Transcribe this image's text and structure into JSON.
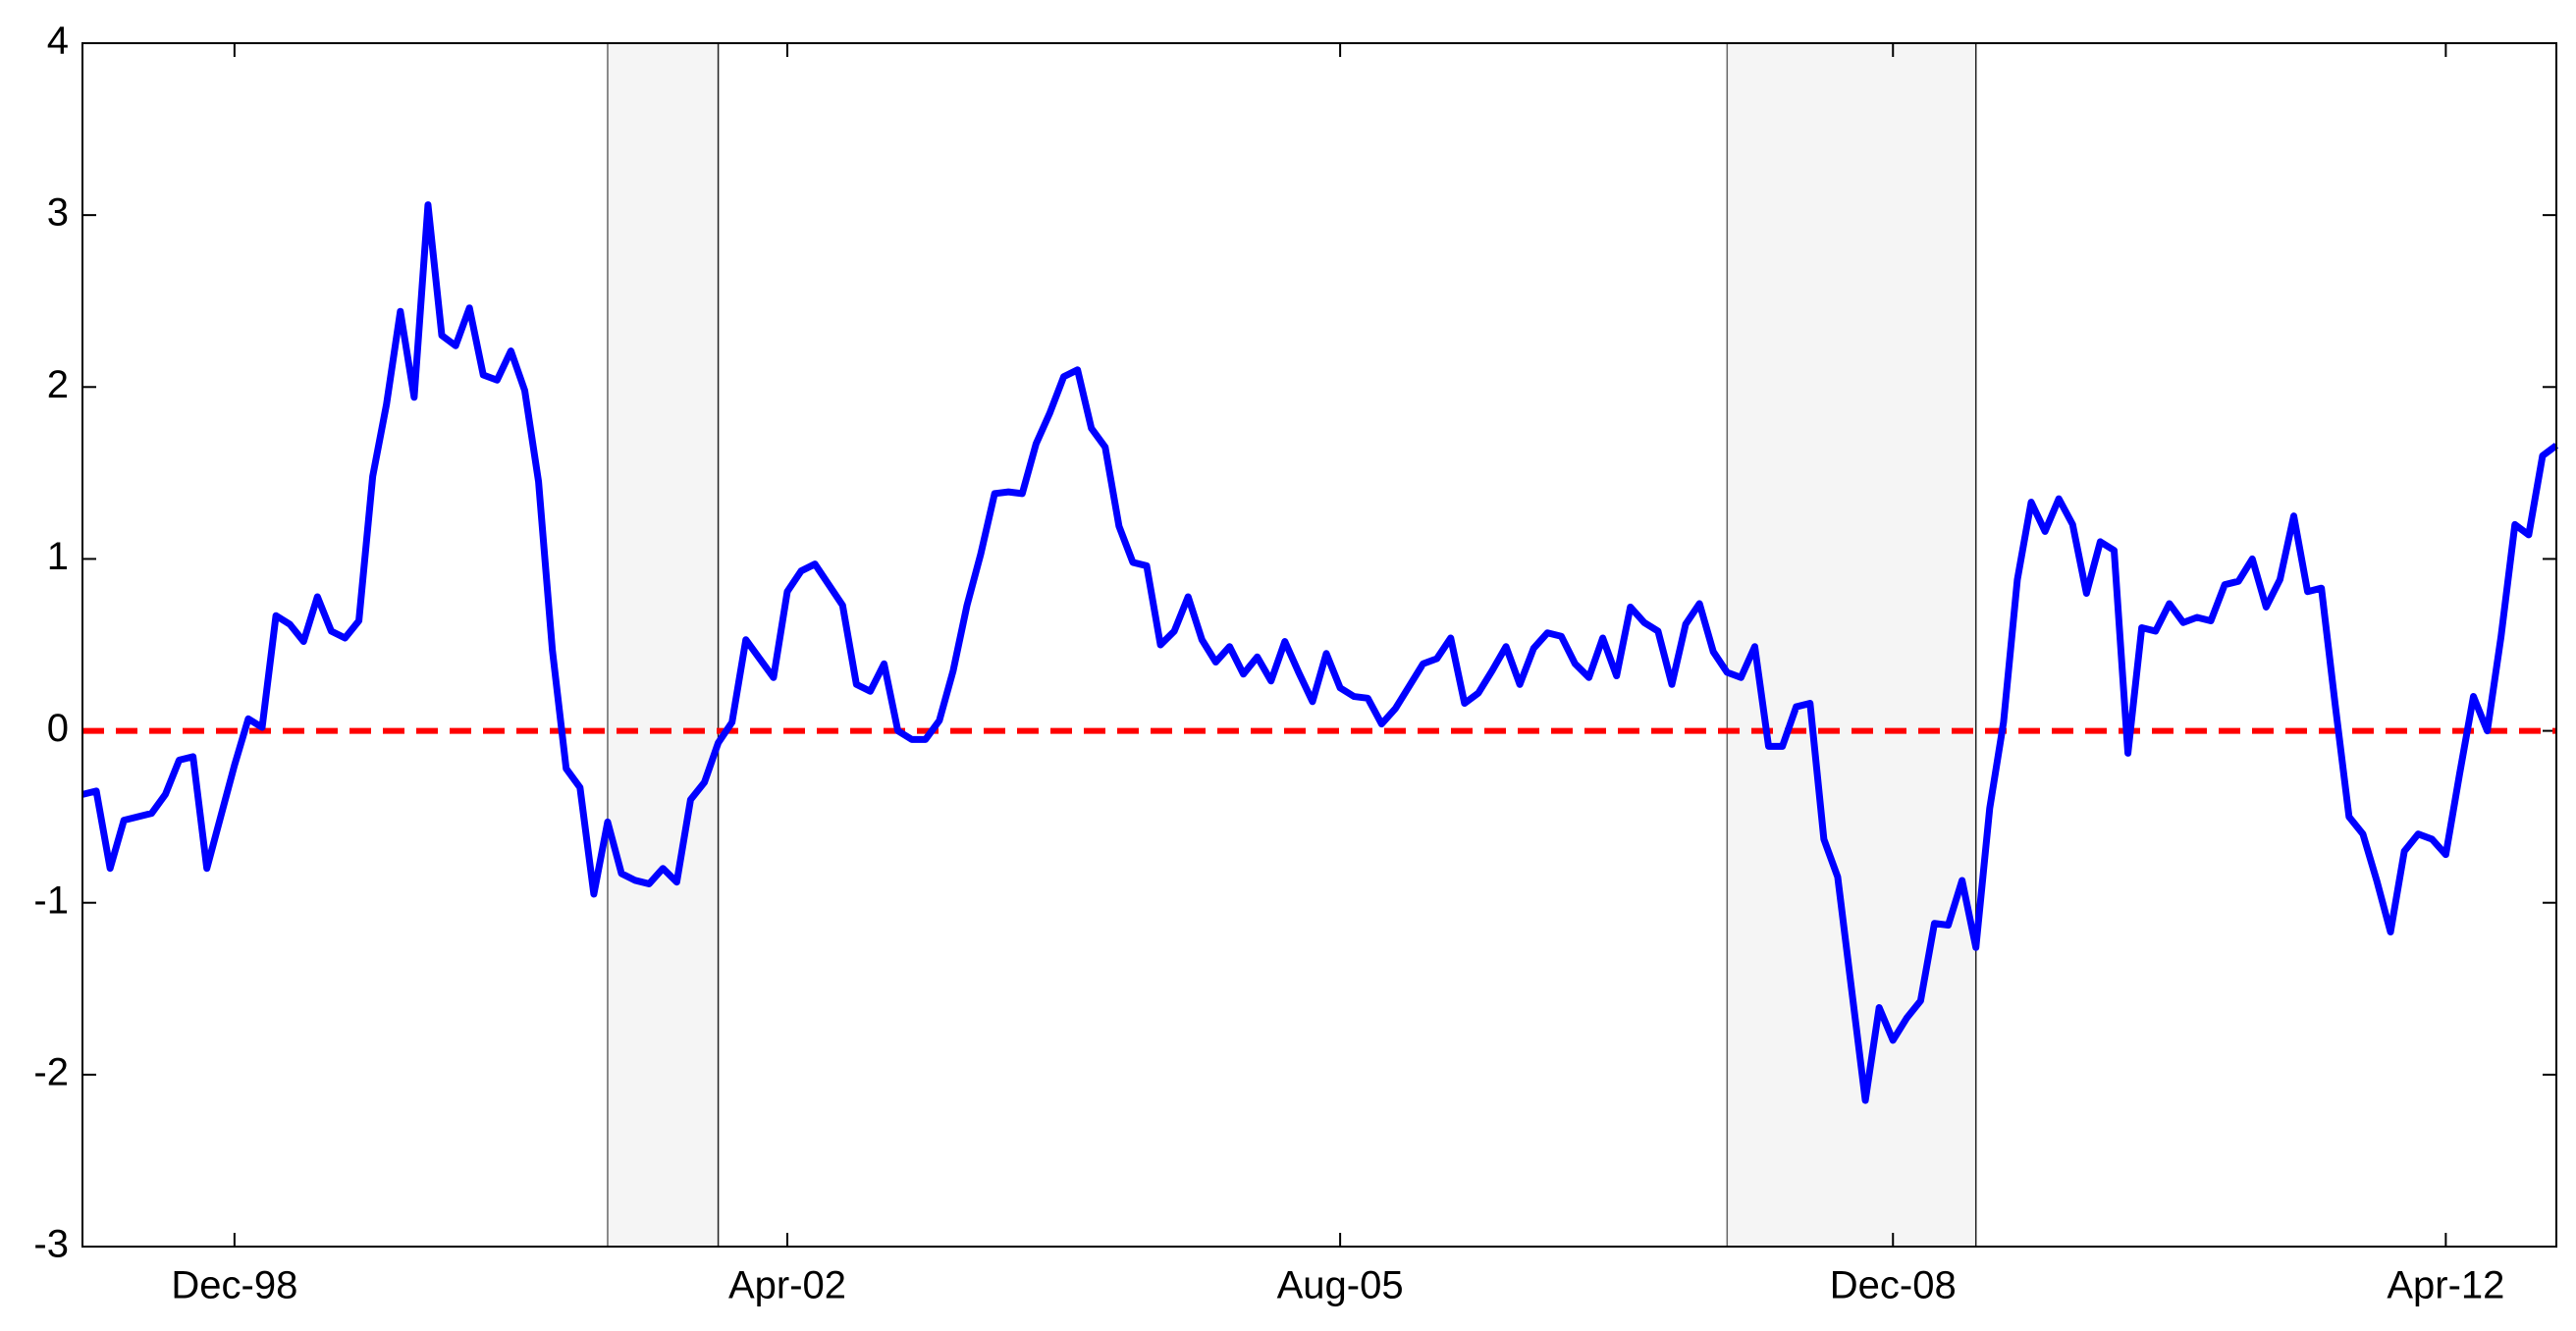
{
  "chart_data": {
    "type": "line",
    "x": [
      "1998-01",
      "1998-02",
      "1998-03",
      "1998-04",
      "1998-05",
      "1998-06",
      "1998-07",
      "1998-08",
      "1998-09",
      "1998-10",
      "1998-11",
      "1998-12",
      "1999-01",
      "1999-02",
      "1999-03",
      "1999-04",
      "1999-05",
      "1999-06",
      "1999-07",
      "1999-08",
      "1999-09",
      "1999-10",
      "1999-11",
      "1999-12",
      "2000-01",
      "2000-02",
      "2000-03",
      "2000-04",
      "2000-05",
      "2000-06",
      "2000-07",
      "2000-08",
      "2000-09",
      "2000-10",
      "2000-11",
      "2000-12",
      "2001-01",
      "2001-02",
      "2001-03",
      "2001-04",
      "2001-05",
      "2001-06",
      "2001-07",
      "2001-08",
      "2001-09",
      "2001-10",
      "2001-11",
      "2001-12",
      "2002-01",
      "2002-02",
      "2002-03",
      "2002-04",
      "2002-05",
      "2002-06",
      "2002-07",
      "2002-08",
      "2002-09",
      "2002-10",
      "2002-11",
      "2002-12",
      "2003-01",
      "2003-02",
      "2003-03",
      "2003-04",
      "2003-05",
      "2003-06",
      "2003-07",
      "2003-08",
      "2003-09",
      "2003-10",
      "2003-11",
      "2003-12",
      "2004-01",
      "2004-02",
      "2004-03",
      "2004-04",
      "2004-05",
      "2004-06",
      "2004-07",
      "2004-08",
      "2004-09",
      "2004-10",
      "2004-11",
      "2004-12",
      "2005-01",
      "2005-02",
      "2005-03",
      "2005-04",
      "2005-05",
      "2005-06",
      "2005-07",
      "2005-08",
      "2005-09",
      "2005-10",
      "2005-11",
      "2005-12",
      "2006-01",
      "2006-02",
      "2006-03",
      "2006-04",
      "2006-05",
      "2006-06",
      "2006-07",
      "2006-08",
      "2006-09",
      "2006-10",
      "2006-11",
      "2006-12",
      "2007-01",
      "2007-02",
      "2007-03",
      "2007-04",
      "2007-05",
      "2007-06",
      "2007-07",
      "2007-08",
      "2007-09",
      "2007-10",
      "2007-11",
      "2007-12",
      "2008-01",
      "2008-02",
      "2008-03",
      "2008-04",
      "2008-05",
      "2008-06",
      "2008-07",
      "2008-08",
      "2008-09",
      "2008-10",
      "2008-11",
      "2008-12",
      "2009-01",
      "2009-02",
      "2009-03",
      "2009-04",
      "2009-05",
      "2009-06",
      "2009-07",
      "2009-08",
      "2009-09",
      "2009-10",
      "2009-11",
      "2009-12",
      "2010-01",
      "2010-02",
      "2010-03",
      "2010-04",
      "2010-05",
      "2010-06",
      "2010-07",
      "2010-08",
      "2010-09",
      "2010-10",
      "2010-11",
      "2010-12",
      "2011-01",
      "2011-02",
      "2011-03",
      "2011-04",
      "2011-05",
      "2011-06",
      "2011-07",
      "2011-08",
      "2011-09",
      "2011-10",
      "2011-11",
      "2011-12",
      "2012-01",
      "2012-02",
      "2012-03",
      "2012-04",
      "2012-05",
      "2012-06",
      "2012-07",
      "2012-08",
      "2012-09",
      "2012-10",
      "2012-11",
      "2012-12"
    ],
    "series": [
      {
        "color": "#0000ff",
        "values": [
          -0.37,
          -0.35,
          -0.8,
          -0.52,
          -0.5,
          -0.48,
          -0.37,
          -0.17,
          -0.15,
          -0.8,
          -0.5,
          -0.2,
          0.07,
          0.02,
          0.67,
          0.62,
          0.52,
          0.78,
          0.58,
          0.54,
          0.64,
          1.48,
          1.9,
          2.44,
          1.94,
          3.06,
          2.3,
          2.24,
          2.46,
          2.07,
          2.04,
          2.21,
          1.98,
          1.45,
          0.47,
          -0.22,
          -0.33,
          -0.95,
          -0.53,
          -0.83,
          -0.87,
          -0.89,
          -0.8,
          -0.88,
          -0.4,
          -0.3,
          -0.07,
          0.05,
          0.53,
          0.42,
          0.31,
          0.81,
          0.93,
          0.97,
          0.85,
          0.73,
          0.27,
          0.23,
          0.39,
          0.0,
          -0.05,
          -0.05,
          0.06,
          0.35,
          0.73,
          1.03,
          1.38,
          1.39,
          1.38,
          1.67,
          1.85,
          2.06,
          2.1,
          1.76,
          1.65,
          1.19,
          0.98,
          0.96,
          0.5,
          0.58,
          0.78,
          0.53,
          0.4,
          0.49,
          0.33,
          0.43,
          0.29,
          0.52,
          0.34,
          0.17,
          0.45,
          0.25,
          0.2,
          0.19,
          0.04,
          0.13,
          0.26,
          0.39,
          0.42,
          0.54,
          0.16,
          0.22,
          0.35,
          0.49,
          0.27,
          0.48,
          0.57,
          0.55,
          0.39,
          0.31,
          0.54,
          0.32,
          0.72,
          0.63,
          0.58,
          0.27,
          0.62,
          0.74,
          0.46,
          0.34,
          0.31,
          0.49,
          -0.09,
          -0.09,
          0.14,
          0.16,
          -0.63,
          -0.85,
          -1.5,
          -2.15,
          -1.61,
          -1.8,
          -1.67,
          -1.57,
          -1.12,
          -1.13,
          -0.87,
          -1.26,
          -0.45,
          0.05,
          0.88,
          1.33,
          1.16,
          1.35,
          1.2,
          0.8,
          1.1,
          1.05,
          -0.13,
          0.6,
          0.58,
          0.74,
          0.63,
          0.66,
          0.64,
          0.85,
          0.87,
          1.0,
          0.72,
          0.88,
          1.25,
          0.81,
          0.83,
          0.15,
          -0.5,
          -0.6,
          -0.87,
          -1.17,
          -0.7,
          -0.6,
          -0.63,
          -0.72,
          -0.25,
          0.2,
          0.0,
          0.55,
          1.2,
          1.14,
          1.6,
          1.66
        ]
      }
    ],
    "xlim": [
      "1998-01",
      "2012-12"
    ],
    "xticks": [
      {
        "value": "1998-12",
        "label": "Dec-98"
      },
      {
        "value": "2002-04",
        "label": "Apr-02"
      },
      {
        "value": "2005-08",
        "label": "Aug-05"
      },
      {
        "value": "2008-12",
        "label": "Dec-08"
      },
      {
        "value": "2012-04",
        "label": "Apr-12"
      }
    ],
    "ylim": [
      -3,
      4
    ],
    "yticks": [
      -3,
      -2,
      -1,
      0,
      1,
      2,
      3,
      4
    ],
    "reference_line": {
      "value": 0,
      "color": "#ff0000",
      "dashed": true
    },
    "shaded_periods": [
      [
        "2001-03",
        "2001-11"
      ],
      [
        "2007-12",
        "2009-06"
      ]
    ],
    "shade_color": "#f5f5f5",
    "grid": false
  }
}
